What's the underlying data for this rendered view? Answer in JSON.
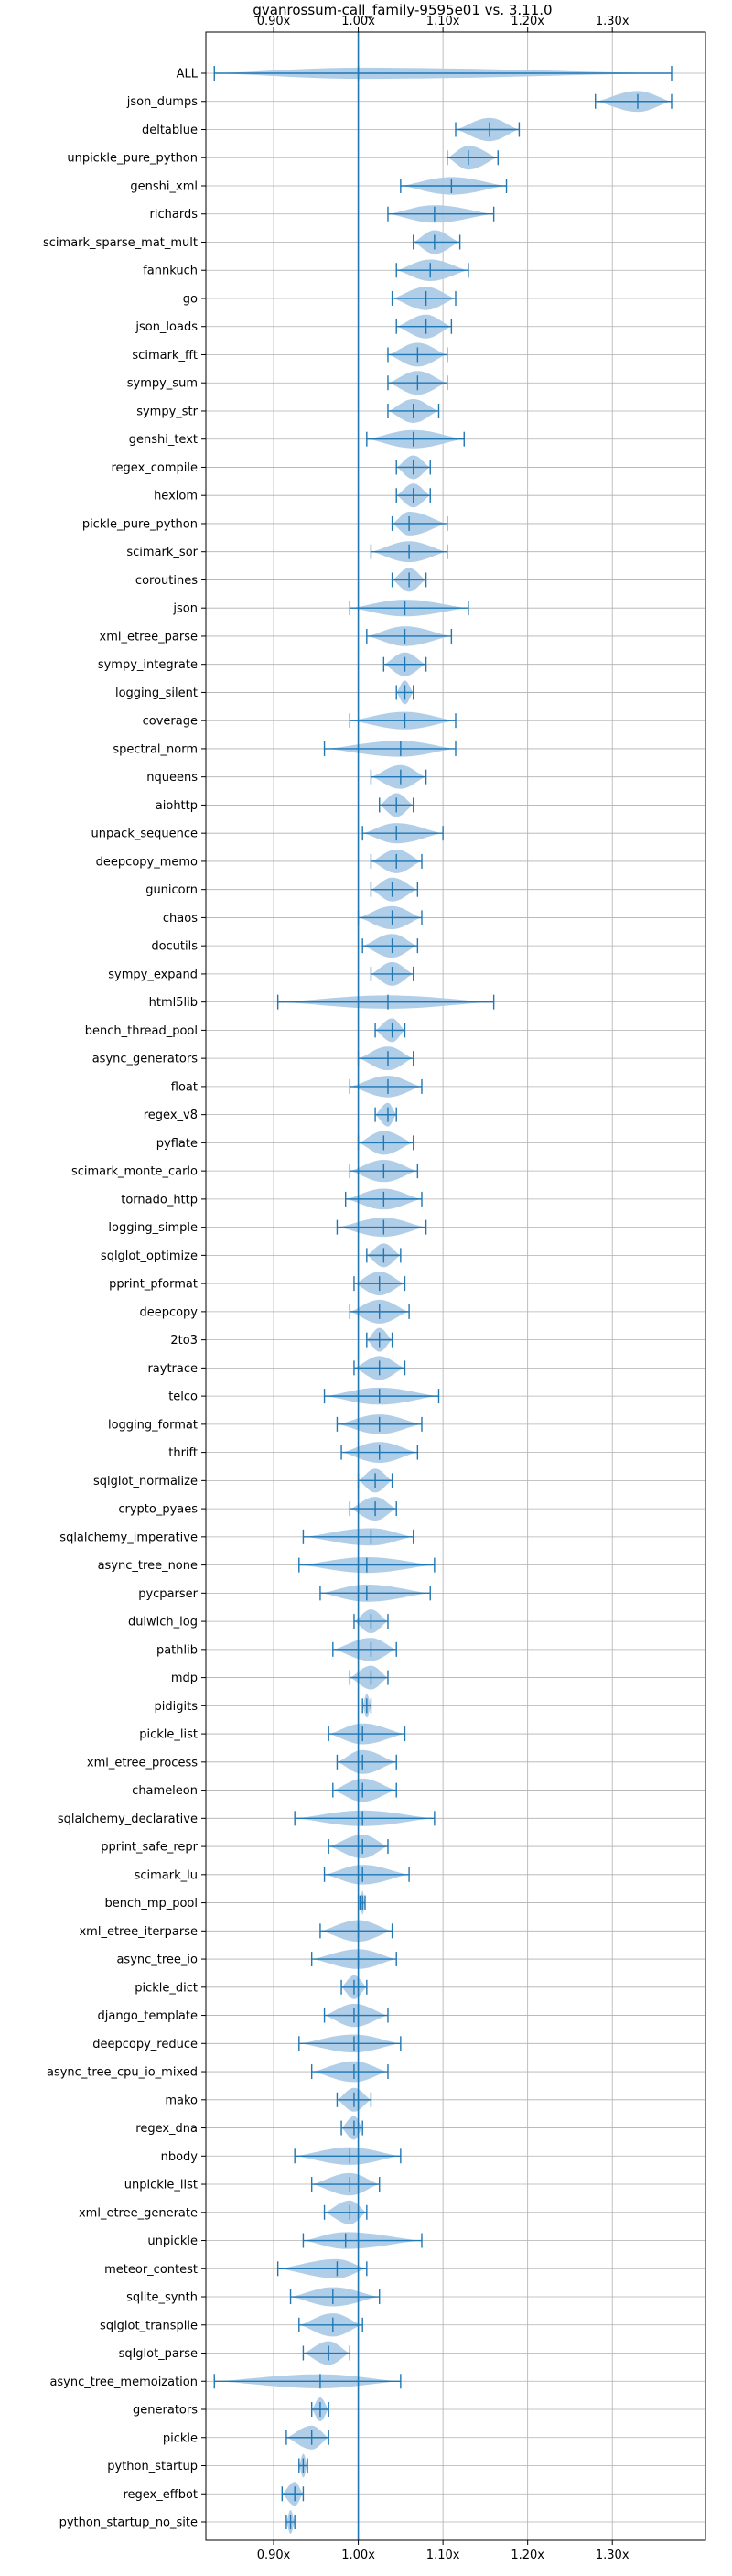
{
  "chart_data": {
    "type": "violin",
    "title": "gvanrossum-call_family-9595e01 vs. 3.11.0",
    "xlabel": "",
    "ylabel": "",
    "xlim": [
      0.82,
      1.41
    ],
    "xticks": [
      0.9,
      1.0,
      1.1,
      1.2,
      1.3
    ],
    "xtick_labels": [
      "0.90x",
      "1.00x",
      "1.10x",
      "1.20x",
      "1.30x"
    ],
    "reference_line": 1.0,
    "grid": true,
    "color": "#1f77b4",
    "fill_color": "#a9c9e6",
    "benchmarks": [
      {
        "name": "ALL",
        "median": 1.0,
        "min": 0.83,
        "max": 1.37
      },
      {
        "name": "json_dumps",
        "median": 1.33,
        "min": 1.28,
        "max": 1.37
      },
      {
        "name": "deltablue",
        "median": 1.155,
        "min": 1.115,
        "max": 1.19
      },
      {
        "name": "unpickle_pure_python",
        "median": 1.13,
        "min": 1.105,
        "max": 1.165
      },
      {
        "name": "genshi_xml",
        "median": 1.11,
        "min": 1.05,
        "max": 1.175
      },
      {
        "name": "richards",
        "median": 1.09,
        "min": 1.035,
        "max": 1.16
      },
      {
        "name": "scimark_sparse_mat_mult",
        "median": 1.09,
        "min": 1.065,
        "max": 1.12
      },
      {
        "name": "fannkuch",
        "median": 1.085,
        "min": 1.045,
        "max": 1.13
      },
      {
        "name": "go",
        "median": 1.08,
        "min": 1.04,
        "max": 1.115
      },
      {
        "name": "json_loads",
        "median": 1.08,
        "min": 1.045,
        "max": 1.11
      },
      {
        "name": "scimark_fft",
        "median": 1.07,
        "min": 1.035,
        "max": 1.105
      },
      {
        "name": "sympy_sum",
        "median": 1.07,
        "min": 1.035,
        "max": 1.105
      },
      {
        "name": "sympy_str",
        "median": 1.065,
        "min": 1.035,
        "max": 1.095
      },
      {
        "name": "genshi_text",
        "median": 1.065,
        "min": 1.01,
        "max": 1.125
      },
      {
        "name": "regex_compile",
        "median": 1.065,
        "min": 1.045,
        "max": 1.085
      },
      {
        "name": "hexiom",
        "median": 1.065,
        "min": 1.045,
        "max": 1.085
      },
      {
        "name": "pickle_pure_python",
        "median": 1.06,
        "min": 1.04,
        "max": 1.105
      },
      {
        "name": "scimark_sor",
        "median": 1.06,
        "min": 1.015,
        "max": 1.105
      },
      {
        "name": "coroutines",
        "median": 1.06,
        "min": 1.04,
        "max": 1.08
      },
      {
        "name": "json",
        "median": 1.055,
        "min": 0.99,
        "max": 1.13
      },
      {
        "name": "xml_etree_parse",
        "median": 1.055,
        "min": 1.01,
        "max": 1.11
      },
      {
        "name": "sympy_integrate",
        "median": 1.055,
        "min": 1.03,
        "max": 1.08
      },
      {
        "name": "logging_silent",
        "median": 1.055,
        "min": 1.045,
        "max": 1.065
      },
      {
        "name": "coverage",
        "median": 1.055,
        "min": 0.99,
        "max": 1.115
      },
      {
        "name": "spectral_norm",
        "median": 1.05,
        "min": 0.96,
        "max": 1.115
      },
      {
        "name": "nqueens",
        "median": 1.05,
        "min": 1.015,
        "max": 1.08
      },
      {
        "name": "aiohttp",
        "median": 1.045,
        "min": 1.025,
        "max": 1.065
      },
      {
        "name": "unpack_sequence",
        "median": 1.045,
        "min": 1.005,
        "max": 1.1
      },
      {
        "name": "deepcopy_memo",
        "median": 1.045,
        "min": 1.015,
        "max": 1.075
      },
      {
        "name": "gunicorn",
        "median": 1.04,
        "min": 1.015,
        "max": 1.07
      },
      {
        "name": "chaos",
        "median": 1.04,
        "min": 1.0,
        "max": 1.075
      },
      {
        "name": "docutils",
        "median": 1.04,
        "min": 1.005,
        "max": 1.07
      },
      {
        "name": "sympy_expand",
        "median": 1.04,
        "min": 1.015,
        "max": 1.065
      },
      {
        "name": "html5lib",
        "median": 1.035,
        "min": 0.905,
        "max": 1.16
      },
      {
        "name": "bench_thread_pool",
        "median": 1.04,
        "min": 1.02,
        "max": 1.055
      },
      {
        "name": "async_generators",
        "median": 1.035,
        "min": 1.0,
        "max": 1.065
      },
      {
        "name": "float",
        "median": 1.035,
        "min": 0.99,
        "max": 1.075
      },
      {
        "name": "regex_v8",
        "median": 1.035,
        "min": 1.02,
        "max": 1.045
      },
      {
        "name": "pyflate",
        "median": 1.03,
        "min": 1.0,
        "max": 1.065
      },
      {
        "name": "scimark_monte_carlo",
        "median": 1.03,
        "min": 0.99,
        "max": 1.07
      },
      {
        "name": "tornado_http",
        "median": 1.03,
        "min": 0.985,
        "max": 1.075
      },
      {
        "name": "logging_simple",
        "median": 1.03,
        "min": 0.975,
        "max": 1.08
      },
      {
        "name": "sqlglot_optimize",
        "median": 1.03,
        "min": 1.01,
        "max": 1.05
      },
      {
        "name": "pprint_pformat",
        "median": 1.025,
        "min": 0.995,
        "max": 1.055
      },
      {
        "name": "deepcopy",
        "median": 1.025,
        "min": 0.99,
        "max": 1.06
      },
      {
        "name": "2to3",
        "median": 1.025,
        "min": 1.01,
        "max": 1.04
      },
      {
        "name": "raytrace",
        "median": 1.025,
        "min": 0.995,
        "max": 1.055
      },
      {
        "name": "telco",
        "median": 1.025,
        "min": 0.96,
        "max": 1.095
      },
      {
        "name": "logging_format",
        "median": 1.025,
        "min": 0.975,
        "max": 1.075
      },
      {
        "name": "thrift",
        "median": 1.025,
        "min": 0.98,
        "max": 1.07
      },
      {
        "name": "sqlglot_normalize",
        "median": 1.02,
        "min": 1.0,
        "max": 1.04
      },
      {
        "name": "crypto_pyaes",
        "median": 1.02,
        "min": 0.99,
        "max": 1.045
      },
      {
        "name": "sqlalchemy_imperative",
        "median": 1.015,
        "min": 0.935,
        "max": 1.065
      },
      {
        "name": "async_tree_none",
        "median": 1.01,
        "min": 0.93,
        "max": 1.09
      },
      {
        "name": "pycparser",
        "median": 1.01,
        "min": 0.955,
        "max": 1.085
      },
      {
        "name": "dulwich_log",
        "median": 1.015,
        "min": 0.995,
        "max": 1.035
      },
      {
        "name": "pathlib",
        "median": 1.015,
        "min": 0.97,
        "max": 1.045
      },
      {
        "name": "mdp",
        "median": 1.015,
        "min": 0.99,
        "max": 1.035
      },
      {
        "name": "pidigits",
        "median": 1.01,
        "min": 1.005,
        "max": 1.015
      },
      {
        "name": "pickle_list",
        "median": 1.005,
        "min": 0.965,
        "max": 1.055
      },
      {
        "name": "xml_etree_process",
        "median": 1.005,
        "min": 0.975,
        "max": 1.045
      },
      {
        "name": "chameleon",
        "median": 1.005,
        "min": 0.97,
        "max": 1.045
      },
      {
        "name": "sqlalchemy_declarative",
        "median": 1.005,
        "min": 0.925,
        "max": 1.09
      },
      {
        "name": "pprint_safe_repr",
        "median": 1.005,
        "min": 0.965,
        "max": 1.035
      },
      {
        "name": "scimark_lu",
        "median": 1.005,
        "min": 0.96,
        "max": 1.06
      },
      {
        "name": "bench_mp_pool",
        "median": 1.005,
        "min": 1.002,
        "max": 1.008
      },
      {
        "name": "xml_etree_iterparse",
        "median": 1.0,
        "min": 0.955,
        "max": 1.04
      },
      {
        "name": "async_tree_io",
        "median": 1.0,
        "min": 0.945,
        "max": 1.045
      },
      {
        "name": "pickle_dict",
        "median": 0.995,
        "min": 0.98,
        "max": 1.01
      },
      {
        "name": "django_template",
        "median": 0.995,
        "min": 0.96,
        "max": 1.035
      },
      {
        "name": "deepcopy_reduce",
        "median": 0.995,
        "min": 0.93,
        "max": 1.05
      },
      {
        "name": "async_tree_cpu_io_mixed",
        "median": 0.995,
        "min": 0.945,
        "max": 1.035
      },
      {
        "name": "mako",
        "median": 0.995,
        "min": 0.975,
        "max": 1.015
      },
      {
        "name": "regex_dna",
        "median": 0.995,
        "min": 0.98,
        "max": 1.005
      },
      {
        "name": "nbody",
        "median": 0.99,
        "min": 0.925,
        "max": 1.05
      },
      {
        "name": "unpickle_list",
        "median": 0.99,
        "min": 0.945,
        "max": 1.025
      },
      {
        "name": "xml_etree_generate",
        "median": 0.99,
        "min": 0.96,
        "max": 1.01
      },
      {
        "name": "unpickle",
        "median": 0.985,
        "min": 0.935,
        "max": 1.075
      },
      {
        "name": "meteor_contest",
        "median": 0.975,
        "min": 0.905,
        "max": 1.01
      },
      {
        "name": "sqlite_synth",
        "median": 0.97,
        "min": 0.92,
        "max": 1.025
      },
      {
        "name": "sqlglot_transpile",
        "median": 0.97,
        "min": 0.93,
        "max": 1.005
      },
      {
        "name": "sqlglot_parse",
        "median": 0.965,
        "min": 0.935,
        "max": 0.99
      },
      {
        "name": "async_tree_memoization",
        "median": 0.955,
        "min": 0.83,
        "max": 1.05
      },
      {
        "name": "generators",
        "median": 0.955,
        "min": 0.945,
        "max": 0.965
      },
      {
        "name": "pickle",
        "median": 0.945,
        "min": 0.915,
        "max": 0.965
      },
      {
        "name": "python_startup",
        "median": 0.935,
        "min": 0.93,
        "max": 0.94
      },
      {
        "name": "regex_effbot",
        "median": 0.925,
        "min": 0.91,
        "max": 0.935
      },
      {
        "name": "python_startup_no_site",
        "median": 0.92,
        "min": 0.915,
        "max": 0.925
      }
    ]
  }
}
